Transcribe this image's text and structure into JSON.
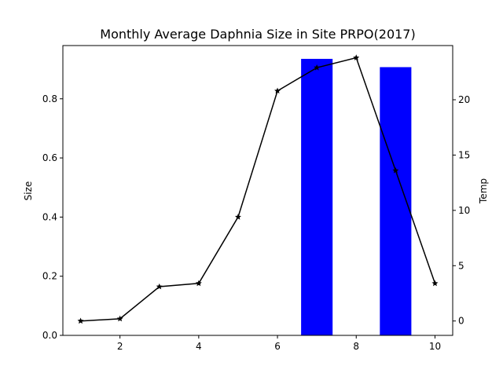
{
  "chart_data": {
    "type": "bar+line",
    "title": "Monthly Average Daphnia Size in Site PRPO(2017)",
    "xlim": [
      0.55,
      10.45
    ],
    "x_ticks": [
      2,
      4,
      6,
      8,
      10
    ],
    "left_axis": {
      "label": "Size",
      "ylim": [
        0,
        0.98
      ],
      "ticks": [
        0.0,
        0.2,
        0.4,
        0.6,
        0.8
      ]
    },
    "right_axis": {
      "label": "Temp",
      "ylim": [
        -1.3,
        24.9
      ],
      "ticks": [
        0,
        5,
        10,
        15,
        20
      ]
    },
    "bars": {
      "axis": "left",
      "color": "#0000ff",
      "width": 0.8,
      "x": [
        7,
        9
      ],
      "values": [
        0.935,
        0.907
      ]
    },
    "line": {
      "axis": "right",
      "color": "#000000",
      "marker": "star",
      "x": [
        1,
        2,
        3,
        4,
        5,
        6,
        7,
        8,
        9,
        10
      ],
      "values": [
        0.0,
        0.2,
        3.1,
        3.4,
        9.4,
        20.8,
        22.9,
        23.8,
        13.6,
        3.4
      ]
    }
  }
}
